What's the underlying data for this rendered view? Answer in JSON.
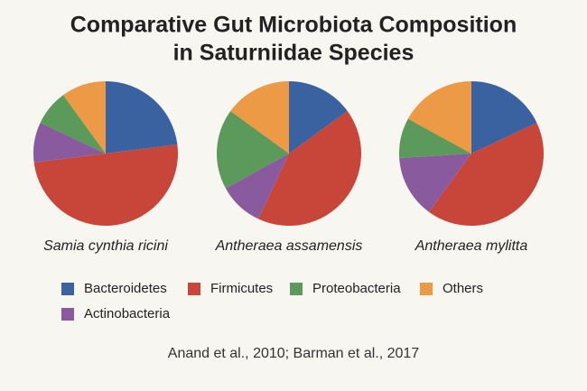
{
  "title": [
    "Comparative Gut Microbiota Composition",
    "in Saturniidae Species"
  ],
  "source": "Anand et al., 2010; Barman et al., 2017",
  "legend": [
    {
      "name": "Bacteroidetes",
      "color": "#3a62a0"
    },
    {
      "name": "Firmicutes",
      "color": "#c8453a"
    },
    {
      "name": "Proteobacteria",
      "color": "#5b9a5a"
    },
    {
      "name": "Others",
      "color": "#ec9a45"
    },
    {
      "name": "Actinobacteria",
      "color": "#8a5a9e"
    }
  ],
  "chart_data": [
    {
      "type": "pie",
      "subtitle": "Samia cynthia ricini",
      "categories": [
        "Bacteroidetes",
        "Firmicutes",
        "Actinobacteria",
        "Proteobacteria",
        "Others"
      ],
      "values": [
        23,
        50,
        9,
        8,
        10
      ],
      "colors": [
        "#3a62a0",
        "#c8453a",
        "#8a5a9e",
        "#5b9a5a",
        "#ec9a45"
      ]
    },
    {
      "type": "pie",
      "subtitle": "Antheraea assamensis",
      "categories": [
        "Bacteroidetes",
        "Firmicutes",
        "Actinobacteria",
        "Proteobacteria",
        "Others"
      ],
      "values": [
        15,
        42,
        10,
        18,
        15
      ],
      "colors": [
        "#3a62a0",
        "#c8453a",
        "#8a5a9e",
        "#5b9a5a",
        "#ec9a45"
      ]
    },
    {
      "type": "pie",
      "subtitle": "Antheraea mylitta",
      "categories": [
        "Bacteroidetes",
        "Firmicutes",
        "Actinobacteria",
        "Proteobacteria",
        "Others"
      ],
      "values": [
        18,
        42,
        14,
        9,
        17
      ],
      "colors": [
        "#3a62a0",
        "#c8453a",
        "#8a5a9e",
        "#5b9a5a",
        "#ec9a45"
      ]
    }
  ]
}
